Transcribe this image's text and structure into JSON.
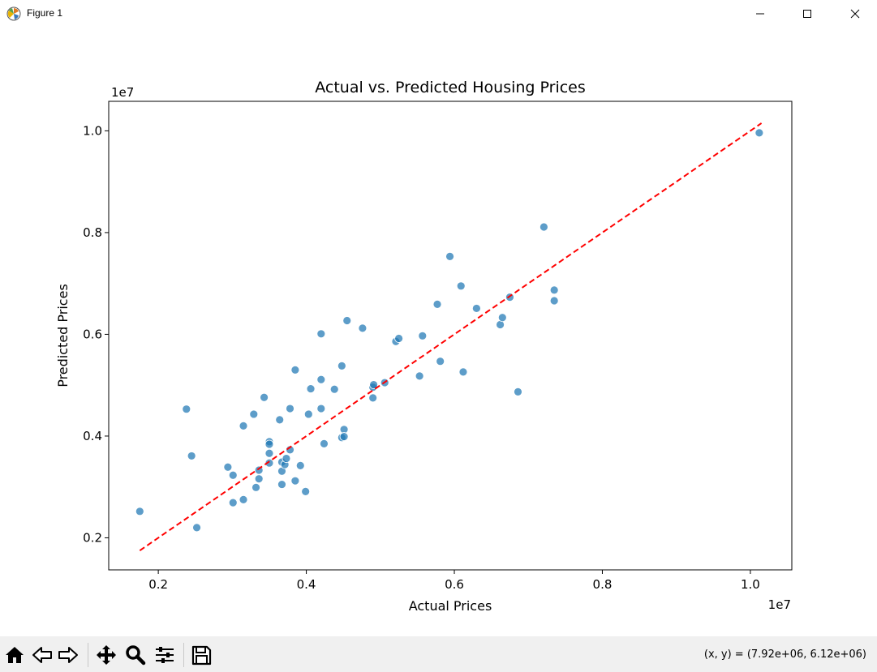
{
  "window": {
    "title": "Figure 1",
    "icons": {
      "app": "matplotlib-icon",
      "minimize": "minimize-icon",
      "maximize": "maximize-icon",
      "close": "close-icon"
    }
  },
  "toolbar": {
    "buttons": [
      {
        "name": "home-button",
        "icon": "home-icon"
      },
      {
        "name": "back-button",
        "icon": "arrow-left-icon"
      },
      {
        "name": "forward-button",
        "icon": "arrow-right-icon"
      },
      {
        "name": "pan-button",
        "icon": "move-icon"
      },
      {
        "name": "zoom-button",
        "icon": "magnifier-icon"
      },
      {
        "name": "configure-subplots-button",
        "icon": "sliders-icon"
      },
      {
        "name": "save-button",
        "icon": "floppy-disk-icon"
      }
    ],
    "coords_text": "(x, y) = (7.92e+06, 6.12e+06)"
  },
  "chart_data": {
    "type": "scatter",
    "title": "Actual vs. Predicted Housing Prices",
    "xlabel": "Actual Prices",
    "ylabel": "Predicted Prices",
    "x_offset_text": "1e7",
    "y_offset_text": "1e7",
    "xlim": [
      1330000,
      10560000
    ],
    "ylim": [
      1370000,
      10580000
    ],
    "xticks": [
      2000000,
      4000000,
      6000000,
      8000000,
      10000000
    ],
    "xtick_labels": [
      "0.2",
      "0.4",
      "0.6",
      "0.8",
      "1.0"
    ],
    "yticks": [
      2000000,
      4000000,
      6000000,
      8000000,
      10000000
    ],
    "ytick_labels": [
      "0.2",
      "0.4",
      "0.6",
      "0.8",
      "1.0"
    ],
    "grid": false,
    "point_color": "#1f77b4",
    "line_color": "#ff0000",
    "reference_line": {
      "x": [
        1750000,
        10150000
      ],
      "y": [
        1750000,
        10150000
      ],
      "style": "dashed"
    },
    "points": [
      [
        1750000,
        2520000
      ],
      [
        2380000,
        4530000
      ],
      [
        2450000,
        3610000
      ],
      [
        2520000,
        2200000
      ],
      [
        2940000,
        3390000
      ],
      [
        3010000,
        3230000
      ],
      [
        3010000,
        2690000
      ],
      [
        3150000,
        4200000
      ],
      [
        3150000,
        2750000
      ],
      [
        3290000,
        4430000
      ],
      [
        3320000,
        2990000
      ],
      [
        3360000,
        3330000
      ],
      [
        3360000,
        3160000
      ],
      [
        3430000,
        4760000
      ],
      [
        3500000,
        3890000
      ],
      [
        3500000,
        3840000
      ],
      [
        3500000,
        3660000
      ],
      [
        3500000,
        3470000
      ],
      [
        3640000,
        4320000
      ],
      [
        3670000,
        3490000
      ],
      [
        3670000,
        3310000
      ],
      [
        3670000,
        3050000
      ],
      [
        3710000,
        3440000
      ],
      [
        3730000,
        3560000
      ],
      [
        3780000,
        4540000
      ],
      [
        3780000,
        3730000
      ],
      [
        3850000,
        5300000
      ],
      [
        3850000,
        3120000
      ],
      [
        3920000,
        3420000
      ],
      [
        3990000,
        2910000
      ],
      [
        4030000,
        4430000
      ],
      [
        4060000,
        4930000
      ],
      [
        4200000,
        6010000
      ],
      [
        4200000,
        5110000
      ],
      [
        4200000,
        4540000
      ],
      [
        4240000,
        3850000
      ],
      [
        4380000,
        4920000
      ],
      [
        4480000,
        5380000
      ],
      [
        4480000,
        3970000
      ],
      [
        4510000,
        4130000
      ],
      [
        4510000,
        3990000
      ],
      [
        4550000,
        6270000
      ],
      [
        4760000,
        6120000
      ],
      [
        4900000,
        4960000
      ],
      [
        4900000,
        4750000
      ],
      [
        4910000,
        5010000
      ],
      [
        5060000,
        5050000
      ],
      [
        5210000,
        5860000
      ],
      [
        5250000,
        5920000
      ],
      [
        5530000,
        5180000
      ],
      [
        5570000,
        5970000
      ],
      [
        5770000,
        6590000
      ],
      [
        5810000,
        5470000
      ],
      [
        5940000,
        7530000
      ],
      [
        6090000,
        6950000
      ],
      [
        6120000,
        5260000
      ],
      [
        6300000,
        6510000
      ],
      [
        6620000,
        6190000
      ],
      [
        6650000,
        6330000
      ],
      [
        6750000,
        6730000
      ],
      [
        6860000,
        4870000
      ],
      [
        7210000,
        8110000
      ],
      [
        7350000,
        6870000
      ],
      [
        7350000,
        6660000
      ],
      [
        10120000,
        9960000
      ]
    ]
  }
}
